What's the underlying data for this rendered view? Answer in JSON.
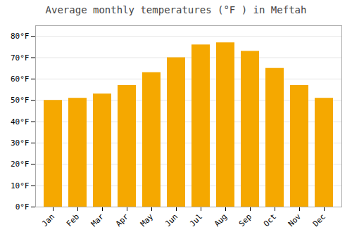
{
  "chart_data": {
    "type": "bar",
    "title": "Average monthly temperatures (°F ) in Meftah",
    "categories": [
      "Jan",
      "Feb",
      "Mar",
      "Apr",
      "May",
      "Jun",
      "Jul",
      "Aug",
      "Sep",
      "Oct",
      "Nov",
      "Dec"
    ],
    "values": [
      50,
      51,
      53,
      57,
      63,
      70,
      76,
      77,
      73,
      65,
      57,
      51
    ],
    "color": "#F5A800",
    "ylim": [
      0,
      85
    ],
    "yticks": [
      {
        "value": 0,
        "label": "0°F"
      },
      {
        "value": 10,
        "label": "10°F"
      },
      {
        "value": 20,
        "label": "20°F"
      },
      {
        "value": 30,
        "label": "30°F"
      },
      {
        "value": 40,
        "label": "40°F"
      },
      {
        "value": 50,
        "label": "50°F"
      },
      {
        "value": 60,
        "label": "60°F"
      },
      {
        "value": 70,
        "label": "70°F"
      },
      {
        "value": 80,
        "label": "80°F"
      }
    ],
    "grid": true
  }
}
